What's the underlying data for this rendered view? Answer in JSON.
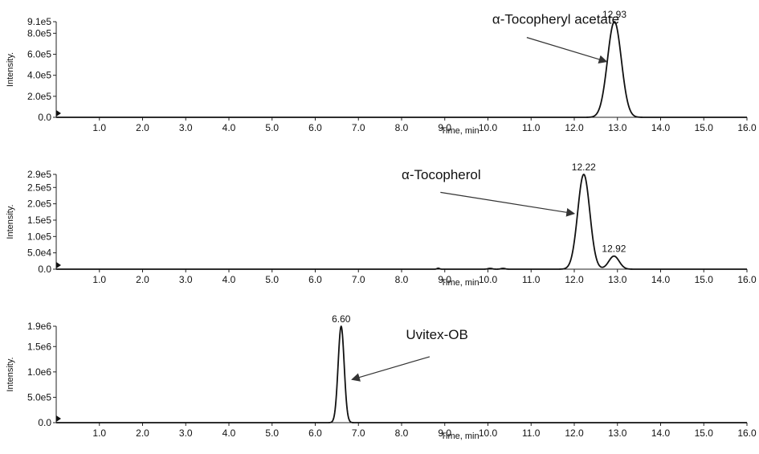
{
  "chart_data": [
    {
      "type": "line",
      "xlabel": "Time, min",
      "ylabel": "Intensity.",
      "xlim": [
        0,
        16
      ],
      "ylim": [
        0,
        910000
      ],
      "x_ticks": [
        "1.0",
        "2.0",
        "3.0",
        "4.0",
        "5.0",
        "6.0",
        "7.0",
        "8.0",
        "9.0",
        "10.0",
        "11.0",
        "12.0",
        "13.0",
        "14.0",
        "15.0",
        "16.0"
      ],
      "y_ticks": [
        {
          "value": 0,
          "label": "0.0"
        },
        {
          "value": 200000,
          "label": "2.0e5"
        },
        {
          "value": 400000,
          "label": "4.0e5"
        },
        {
          "value": 600000,
          "label": "6.0e5"
        },
        {
          "value": 800000,
          "label": "8.0e5"
        },
        {
          "value": 910000,
          "label": "9.1e5"
        }
      ],
      "peaks": [
        {
          "time": 12.93,
          "height": 910000,
          "width": 0.16,
          "label": "12.93"
        }
      ],
      "annotation": {
        "text": "α-Tocopheryl acetate",
        "text_x": 10.1,
        "text_y": 890000,
        "line_start": [
          10.9,
          760000
        ],
        "arrow_to": [
          12.75,
          530000
        ]
      },
      "grid": false,
      "legend": "none"
    },
    {
      "type": "line",
      "xlabel": "Time, min",
      "ylabel": "Intensity.",
      "xlim": [
        0,
        16
      ],
      "ylim": [
        0,
        290000
      ],
      "x_ticks": [
        "1.0",
        "2.0",
        "3.0",
        "4.0",
        "5.0",
        "6.0",
        "7.0",
        "8.0",
        "9.0",
        "10.0",
        "11.0",
        "12.0",
        "13.0",
        "14.0",
        "15.0",
        "16.0"
      ],
      "y_ticks": [
        {
          "value": 0,
          "label": "0.0"
        },
        {
          "value": 50000,
          "label": "5.0e4"
        },
        {
          "value": 100000,
          "label": "1.0e5"
        },
        {
          "value": 150000,
          "label": "1.5e5"
        },
        {
          "value": 200000,
          "label": "2.0e5"
        },
        {
          "value": 250000,
          "label": "2.5e5"
        },
        {
          "value": 290000,
          "label": "2.9e5"
        }
      ],
      "peaks": [
        {
          "time": 12.22,
          "height": 290000,
          "width": 0.14,
          "label": "12.22"
        },
        {
          "time": 12.92,
          "height": 40000,
          "width": 0.12,
          "label": "12.92"
        },
        {
          "time": 8.85,
          "height": 3000,
          "width": 0.03,
          "label": ""
        },
        {
          "time": 10.05,
          "height": 2500,
          "width": 0.05,
          "label": ""
        },
        {
          "time": 10.35,
          "height": 2500,
          "width": 0.05,
          "label": ""
        }
      ],
      "annotation": {
        "text": "α-Tocopherol",
        "text_x": 8.0,
        "text_y": 275000,
        "line_start": [
          8.9,
          235000
        ],
        "arrow_to": [
          12.0,
          170000
        ]
      },
      "grid": false,
      "legend": "none"
    },
    {
      "type": "line",
      "xlabel": "Time, min",
      "ylabel": "Intensity.",
      "xlim": [
        0,
        16
      ],
      "ylim": [
        0,
        1900000
      ],
      "x_ticks": [
        "1.0",
        "2.0",
        "3.0",
        "4.0",
        "5.0",
        "6.0",
        "7.0",
        "8.0",
        "9.0",
        "10.0",
        "11.0",
        "12.0",
        "13.0",
        "14.0",
        "15.0",
        "16.0"
      ],
      "y_ticks": [
        {
          "value": 0,
          "label": "0.0"
        },
        {
          "value": 500000,
          "label": "5.0e5"
        },
        {
          "value": 1000000,
          "label": "1.0e6"
        },
        {
          "value": 1500000,
          "label": "1.5e6"
        },
        {
          "value": 1900000,
          "label": "1.9e6"
        }
      ],
      "peaks": [
        {
          "time": 6.6,
          "height": 1900000,
          "width": 0.07,
          "label": "6.60"
        }
      ],
      "annotation": {
        "text": "Uvitex-OB",
        "text_x": 8.1,
        "text_y": 1650000,
        "line_start": [
          8.65,
          1300000
        ],
        "arrow_to": [
          6.85,
          850000
        ]
      },
      "grid": false,
      "legend": "none"
    }
  ]
}
